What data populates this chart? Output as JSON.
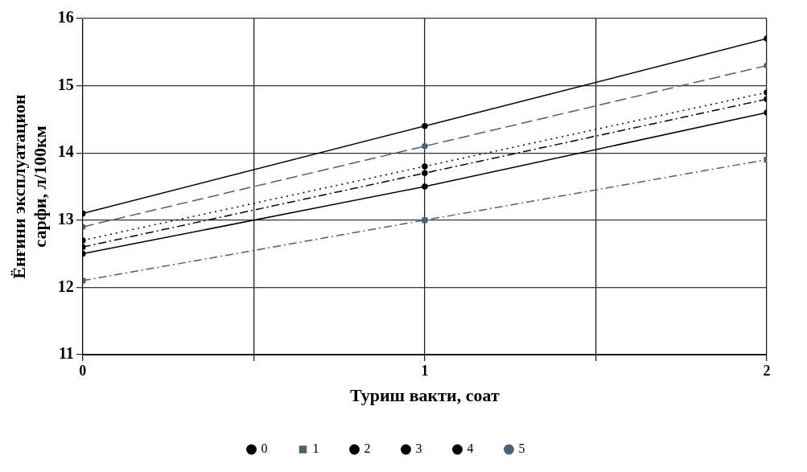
{
  "chart_data": {
    "type": "line",
    "xlabel": "Туриш вакти, соат",
    "ylabel": "Ёнғини эксплуатацион\nсарфи, л/100км",
    "x": [
      0,
      1,
      2
    ],
    "xlim": [
      0,
      2
    ],
    "xticks": [
      0,
      {
        "value": 0.5,
        "label": null
      },
      1,
      {
        "value": 1.5,
        "label": null
      },
      2
    ],
    "ylim": [
      11,
      16
    ],
    "yticks": [
      11,
      12,
      13,
      14,
      15,
      16
    ],
    "grid": true,
    "legend": "bottom",
    "series": [
      {
        "name": "0",
        "color": "#000000",
        "values": [
          13.1,
          14.4,
          15.7
        ],
        "line_style": "solid",
        "marker": "circle"
      },
      {
        "name": "1",
        "color": "#4a6272",
        "values": [
          12.1,
          13.0,
          13.9
        ],
        "line_style": "dashdot",
        "marker": "square"
      },
      {
        "name": "2",
        "color": "#000000",
        "values": [
          12.5,
          13.5,
          14.6
        ],
        "line_style": "solid",
        "marker": "circle"
      },
      {
        "name": "3",
        "color": "#000000",
        "values": [
          12.6,
          13.7,
          14.8
        ],
        "line_style": "dashdot",
        "marker": "circle"
      },
      {
        "name": "4",
        "color": "#000000",
        "values": [
          12.7,
          13.8,
          14.9
        ],
        "line_style": "dotted",
        "marker": "circle"
      },
      {
        "name": "5",
        "color": "#4a6272",
        "values": [
          12.9,
          14.1,
          15.3
        ],
        "line_style": "dashed",
        "marker": "circle"
      }
    ]
  }
}
